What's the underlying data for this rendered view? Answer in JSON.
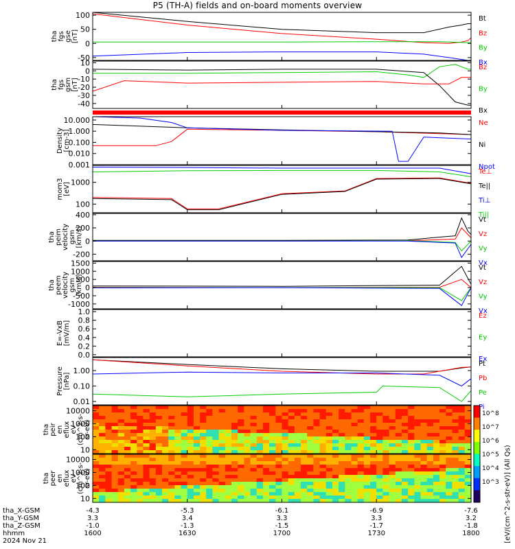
{
  "title": "P5 (TH-A) fields and on-board moments overview",
  "chart_data": [
    {
      "type": "line",
      "ylabel": "tha\nfgs\ngse\n[nT]",
      "ylim": [
        -60,
        110
      ],
      "yticks": [
        -50,
        0,
        50,
        100
      ],
      "series": [
        {
          "name": "Bt",
          "color": "#000000",
          "x": [
            1600,
            1630,
            1700,
            1730,
            1745,
            1753,
            1757,
            1759,
            1800
          ],
          "y": [
            112,
            78,
            50,
            38,
            38,
            58,
            65,
            70,
            70
          ]
        },
        {
          "name": "Bz",
          "color": "#ff0000",
          "x": [
            1600,
            1630,
            1700,
            1730,
            1745,
            1753,
            1757,
            1759,
            1800
          ],
          "y": [
            105,
            65,
            35,
            15,
            3,
            0,
            5,
            10,
            20
          ]
        },
        {
          "name": "By",
          "color": "#00cc00",
          "x": [
            1600,
            1630,
            1700,
            1730,
            1750,
            1759,
            1800
          ],
          "y": [
            5,
            5,
            5,
            6,
            6,
            3,
            3
          ]
        },
        {
          "name": "Bx",
          "color": "#0000ff",
          "x": [
            1600,
            1630,
            1700,
            1730,
            1745,
            1753,
            1759,
            1800
          ],
          "y": [
            -45,
            -32,
            -30,
            -30,
            -38,
            -50,
            -62,
            -65
          ]
        }
      ]
    },
    {
      "type": "line",
      "ylabel": "tha\nfgs\ngsm\n[nT]",
      "ylim": [
        -46,
        12
      ],
      "yticks": [
        -40,
        -30,
        -20,
        -10,
        0,
        10
      ],
      "series": [
        {
          "name": "Bz",
          "color": "#ff0000",
          "x": [
            1600,
            1610,
            1630,
            1700,
            1730,
            1745,
            1753,
            1757,
            1800
          ],
          "y": [
            -25,
            -12,
            -15,
            -14,
            -13,
            -16,
            -16,
            -8,
            -8
          ]
        },
        {
          "name": "By",
          "color": "#00cc00",
          "x": [
            1600,
            1630,
            1700,
            1730,
            1740,
            1745,
            1750,
            1755,
            1759,
            1800
          ],
          "y": [
            -3,
            -3,
            -2,
            -1,
            -5,
            -8,
            5,
            8,
            2,
            2
          ]
        },
        {
          "name": "Bx",
          "color": "#000000",
          "x": [
            1600,
            1630,
            1700,
            1730,
            1745,
            1750,
            1755,
            1759,
            1800
          ],
          "y": [
            2,
            1,
            2,
            2,
            -2,
            -18,
            -38,
            -42,
            -42
          ]
        }
      ]
    },
    {
      "type": "bar",
      "colors": [
        "#ff0000"
      ],
      "values": [
        1
      ]
    },
    {
      "type": "line",
      "ylabel": "Density\n[cm-3]",
      "yscale": "log",
      "ylim": [
        0.001,
        20
      ],
      "yticks": [
        "10.000",
        "1.000",
        "0.100",
        "0.010",
        "0.001"
      ],
      "series": [
        {
          "name": "Ne",
          "color": "#ff0000",
          "x": [
            1600,
            1620,
            1625,
            1630,
            1700,
            1730,
            1750,
            1800
          ],
          "y": [
            0.05,
            0.05,
            0.12,
            1.5,
            1.2,
            0.9,
            0.6,
            0.5
          ]
        },
        {
          "name": "Ni",
          "color": "#000000",
          "x": [
            1600,
            1630,
            1700,
            1730,
            1750,
            1800
          ],
          "y": [
            4,
            2,
            1.3,
            0.9,
            0.7,
            0.5
          ]
        },
        {
          "name": "Npot",
          "color": "#0000ff",
          "x": [
            1600,
            1615,
            1625,
            1630,
            1700,
            1735,
            1737,
            1740,
            1745,
            1800
          ],
          "y": [
            20,
            15,
            6,
            2,
            1.2,
            1,
            0.002,
            0.002,
            0.3,
            0.2
          ]
        }
      ]
    },
    {
      "type": "line",
      "ylabel": "mom3\n[eV]",
      "yscale": "log",
      "ylim": [
        40,
        6000
      ],
      "yticks": [
        100,
        1000
      ],
      "series": [
        {
          "name": "Te⊥",
          "color": "#ff0000",
          "x": [
            1600,
            1625,
            1630,
            1640,
            1700,
            1720,
            1730,
            1750,
            1800
          ],
          "y": [
            200,
            180,
            60,
            60,
            300,
            400,
            1500,
            1600,
            900
          ]
        },
        {
          "name": "Te||",
          "color": "#000000",
          "x": [
            1600,
            1625,
            1630,
            1640,
            1700,
            1720,
            1730,
            1750,
            1800
          ],
          "y": [
            180,
            160,
            55,
            55,
            280,
            380,
            1400,
            1500,
            850
          ]
        },
        {
          "name": "Ti⊥",
          "color": "#0000ff",
          "x": [
            1600,
            1630,
            1700,
            1730,
            1750,
            1800
          ],
          "y": [
            5000,
            4800,
            4500,
            4500,
            4500,
            2500
          ]
        },
        {
          "name": "Ti||",
          "color": "#00cc00",
          "x": [
            1600,
            1630,
            1700,
            1730,
            1750,
            1800
          ],
          "y": [
            3000,
            3400,
            3500,
            3500,
            3000,
            1800
          ]
        }
      ]
    },
    {
      "type": "line",
      "ylabel": "tha\npeim\nvelocity\ngsm\n[km/s]",
      "ylim": [
        -300,
        420
      ],
      "yticks": [
        -200,
        0,
        200,
        400
      ],
      "series": [
        {
          "name": "Vt",
          "color": "#000000",
          "x": [
            1600,
            1700,
            1740,
            1750,
            1755,
            1757,
            1759,
            1800
          ],
          "y": [
            10,
            10,
            15,
            60,
            80,
            350,
            150,
            100
          ]
        },
        {
          "name": "Vz",
          "color": "#ff0000",
          "x": [
            1600,
            1700,
            1740,
            1755,
            1757,
            1800
          ],
          "y": [
            0,
            0,
            5,
            30,
            200,
            50
          ]
        },
        {
          "name": "Vy",
          "color": "#00cc00",
          "x": [
            1600,
            1700,
            1740,
            1755,
            1757,
            1800
          ],
          "y": [
            0,
            0,
            5,
            -20,
            -150,
            0
          ]
        },
        {
          "name": "Vx",
          "color": "#0000ff",
          "x": [
            1600,
            1700,
            1740,
            1755,
            1757,
            1800
          ],
          "y": [
            0,
            0,
            0,
            -30,
            -250,
            -50
          ]
        }
      ]
    },
    {
      "type": "line",
      "ylabel": "tha\npeem\nvelocity\ngsm\n[km/s]",
      "ylim": [
        -1300,
        1600
      ],
      "yticks": [
        -1000,
        -500,
        0,
        500,
        1000,
        1500
      ],
      "series": [
        {
          "name": "Vt",
          "color": "#000000",
          "x": [
            1600,
            1700,
            1750,
            1757,
            1800
          ],
          "y": [
            100,
            80,
            150,
            1300,
            200
          ]
        },
        {
          "name": "Vz",
          "color": "#ff0000",
          "x": [
            1600,
            1700,
            1750,
            1757,
            1800
          ],
          "y": [
            20,
            0,
            20,
            500,
            0
          ]
        },
        {
          "name": "Vy",
          "color": "#00cc00",
          "x": [
            1600,
            1700,
            1750,
            1757,
            1800
          ],
          "y": [
            0,
            0,
            0,
            -800,
            0
          ]
        },
        {
          "name": "Vx",
          "color": "#0000ff",
          "x": [
            1600,
            1700,
            1750,
            1757,
            1800
          ],
          "y": [
            -20,
            0,
            -50,
            -1100,
            0
          ]
        }
      ]
    },
    {
      "type": "line",
      "ylabel": "E=-VxB\n[mV/m]",
      "ylim": [
        -0.05,
        1.05
      ],
      "yticks": [
        "0.0",
        "0.2",
        "0.4",
        "0.6",
        "0.8",
        "1.0"
      ],
      "series": [
        {
          "name": "Ez",
          "color": "#ff0000",
          "x": [],
          "y": []
        },
        {
          "name": "Ey",
          "color": "#00cc00",
          "x": [],
          "y": []
        },
        {
          "name": "Ex",
          "color": "#0000ff",
          "x": [],
          "y": []
        }
      ]
    },
    {
      "type": "line",
      "ylabel": "Pressure\n[nPa]",
      "yscale": "log",
      "ylim": [
        0.006,
        7
      ],
      "yticks": [
        "1.00",
        "0.10",
        "0.01"
      ],
      "series": [
        {
          "name": "Pt",
          "color": "#000000",
          "x": [
            1600,
            1630,
            1700,
            1730,
            1750,
            1757,
            1800
          ],
          "y": [
            5,
            2.5,
            1.3,
            0.9,
            0.9,
            1.5,
            1.7
          ]
        },
        {
          "name": "Pb",
          "color": "#ff0000",
          "x": [
            1600,
            1630,
            1700,
            1730,
            1745,
            1757,
            1800
          ],
          "y": [
            5,
            2,
            0.9,
            0.6,
            0.6,
            1.6,
            1.7
          ]
        },
        {
          "name": "Pe",
          "color": "#00cc00",
          "x": [
            1600,
            1630,
            1700,
            1730,
            1732,
            1750,
            1757,
            1800
          ],
          "y": [
            0.03,
            0.02,
            0.03,
            0.04,
            0.1,
            0.08,
            0.01,
            0.05
          ]
        },
        {
          "name": "Pi",
          "color": "#0000ff",
          "x": [
            1600,
            1630,
            1700,
            1730,
            1750,
            1757,
            1800
          ],
          "y": [
            0.6,
            0.8,
            0.7,
            0.7,
            0.5,
            0.1,
            0.3
          ]
        }
      ]
    },
    {
      "type": "heatmap",
      "ylabel": "tha\npeir\nen\neflux\neV\n(cm^2-s-\nsr-eV)",
      "yscale": "log",
      "ylim": [
        5,
        25000
      ],
      "yticks": [
        10,
        100,
        1000,
        10000
      ]
    },
    {
      "type": "heatmap",
      "ylabel": "tha\npeer\nen\neflux\neV\n(cm^2-s-\nsr-eV)",
      "yscale": "log",
      "ylim": [
        5,
        25000
      ],
      "yticks": [
        10,
        100,
        1000,
        10000
      ],
      "colorbar": {
        "label": "[eV/(cm^2-s-str-eV)] (All Qs)",
        "ticks": [
          "10^8",
          "10^7",
          "10^6",
          "10^5",
          "10^4",
          "10^3"
        ]
      }
    }
  ],
  "xaxis": {
    "rows": [
      {
        "label": "tha_X-GSM",
        "values": [
          "-4.3",
          "-5.3",
          "-6.1",
          "-6.9",
          "-7.6"
        ]
      },
      {
        "label": "tha_Y-GSM",
        "values": [
          "3.3",
          "3.4",
          "3.3",
          "3.3",
          "3.2"
        ]
      },
      {
        "label": "tha_Z-GSM",
        "values": [
          "-1.0",
          "-1.3",
          "-1.5",
          "-1.7",
          "-1.8"
        ]
      },
      {
        "label": "hhmm",
        "values": [
          "1600",
          "1630",
          "1700",
          "1730",
          "1800"
        ]
      }
    ],
    "date": "2024 Nov 21"
  }
}
